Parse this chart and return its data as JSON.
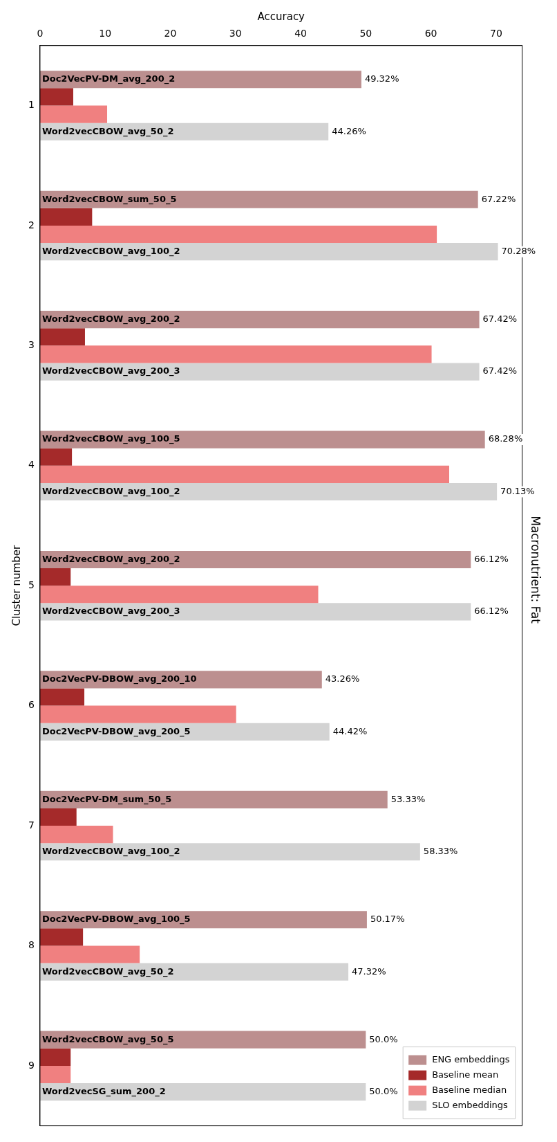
{
  "chart_data": {
    "type": "bar",
    "orientation": "horizontal",
    "title": "Macronutrient: Fat",
    "xlabel": "Accuracy",
    "ylabel": "Cluster number",
    "categories": [
      "1",
      "2",
      "3",
      "4",
      "5",
      "6",
      "7",
      "8",
      "9"
    ],
    "xlim": [
      0,
      74
    ],
    "xticks": [
      0,
      10,
      20,
      30,
      40,
      50,
      60,
      70
    ],
    "legend": "bottom right",
    "grid": false,
    "series": [
      {
        "name": "ENG embeddings",
        "color": "#bc8f8f",
        "values": [
          49.32,
          67.22,
          67.42,
          68.28,
          66.12,
          43.26,
          53.33,
          50.17,
          50.0
        ],
        "value_labels": [
          "49.32%",
          "67.22%",
          "67.42%",
          "68.28%",
          "66.12%",
          "43.26%",
          "53.33%",
          "50.17%",
          "50.0%"
        ]
      },
      {
        "name": "Baseline mean",
        "color": "#a52a2a",
        "values": [
          5.1,
          8.0,
          6.9,
          4.9,
          4.7,
          6.8,
          5.6,
          6.6,
          4.7
        ]
      },
      {
        "name": "Baseline median",
        "color": "#f08080",
        "values": [
          10.3,
          60.9,
          60.1,
          62.8,
          42.7,
          30.1,
          11.2,
          15.3,
          4.7
        ]
      },
      {
        "name": "SLO embeddings",
        "color": "#d3d3d3",
        "values": [
          44.26,
          70.28,
          67.42,
          70.13,
          66.12,
          44.42,
          58.33,
          47.32,
          50.0
        ],
        "value_labels": [
          "44.26%",
          "70.28%",
          "67.42%",
          "70.13%",
          "66.12%",
          "44.42%",
          "58.33%",
          "47.32%",
          "50.0%"
        ]
      }
    ],
    "annotations": [
      "Doc2VecPV-DM_avg_200_2",
      "Word2vecCBOW_avg_50_2",
      "Word2vecCBOW_sum_50_5",
      "Word2vecCBOW_avg_100_2",
      "Word2vecCBOW_avg_200_2",
      "Word2vecCBOW_avg_200_3",
      "Word2vecCBOW_avg_100_5",
      "Word2vecCBOW_avg_100_2",
      "Word2vecCBOW_avg_200_2",
      "Word2vecCBOW_avg_200_3",
      "Doc2VecPV-DBOW_avg_200_10",
      "Doc2VecPV-DBOW_avg_200_5",
      "Doc2VecPV-DM_sum_50_5",
      "Word2vecCBOW_avg_100_2",
      "Doc2VecPV-DBOW_avg_100_5",
      "Word2vecCBOW_avg_50_2",
      "Word2vecCBOW_avg_50_5",
      "Word2vecSG_sum_200_2"
    ]
  }
}
